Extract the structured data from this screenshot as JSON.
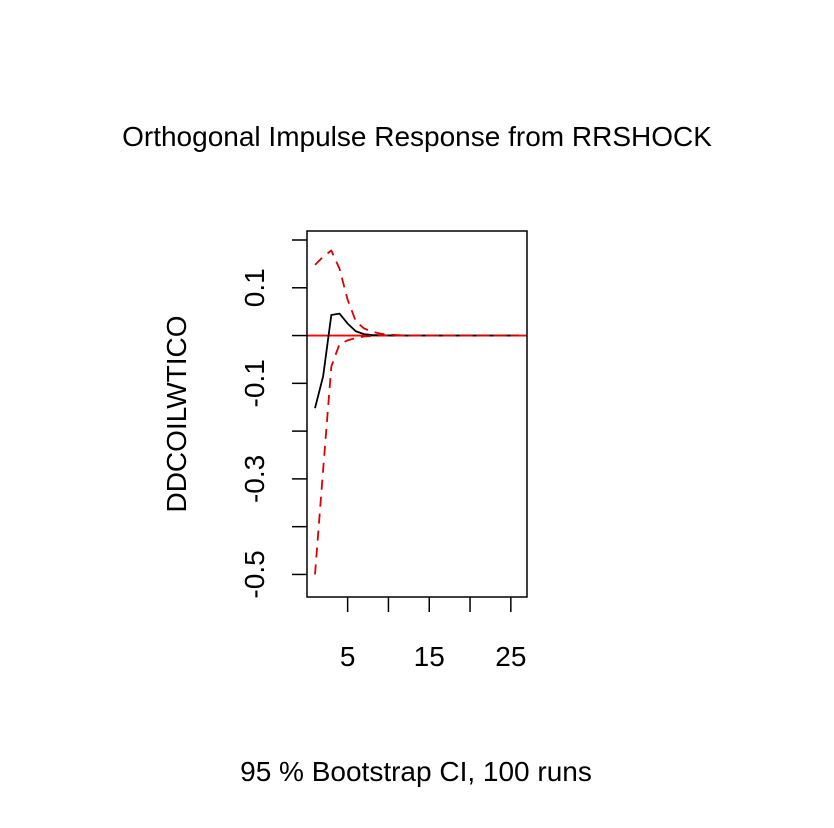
{
  "chart_data": {
    "type": "line",
    "title": "Orthogonal Impulse Response from RRSHOCK",
    "subtitle": "95 % Bootstrap CI,  100 runs",
    "ylabel": "DDCOILWTICO",
    "xlabel": "",
    "xlim": [
      1,
      26
    ],
    "ylim": [
      -0.52,
      0.2
    ],
    "x_ticks": [
      5,
      10,
      15,
      20,
      25
    ],
    "x_tick_labels": [
      "5",
      "15",
      "25"
    ],
    "y_ticks": [
      -0.5,
      -0.4,
      -0.3,
      -0.2,
      -0.1,
      0.0,
      0.1,
      0.2
    ],
    "y_tick_labels": [
      "-0.5",
      "-0.3",
      "-0.1",
      "0.1"
    ],
    "zero_line": 0,
    "grid": false,
    "colors": {
      "response": "#000000",
      "ci": "#dd0000",
      "zero": "#ff0000"
    },
    "series": [
      {
        "role": "response",
        "x": [
          1,
          2,
          3,
          4,
          5,
          6,
          7,
          8,
          9,
          10,
          11,
          12,
          13,
          14,
          15,
          16,
          17,
          18,
          19,
          20,
          21,
          22,
          23,
          24,
          25,
          26
        ],
        "values": [
          -0.152,
          -0.085,
          0.043,
          0.046,
          0.025,
          0.009,
          0.003,
          0.001,
          0.0005,
          0.0002,
          0,
          0,
          0,
          0,
          0,
          0,
          0,
          0,
          0,
          0,
          0,
          0,
          0,
          0,
          0,
          0
        ]
      },
      {
        "role": "upper",
        "x": [
          1,
          2,
          3,
          4,
          5,
          6,
          7,
          8,
          9,
          10,
          11,
          12,
          13,
          14,
          15,
          16,
          17,
          18,
          19,
          20,
          21,
          22,
          23,
          24,
          25,
          26
        ],
        "values": [
          0.148,
          0.165,
          0.178,
          0.14,
          0.075,
          0.03,
          0.015,
          0.008,
          0.004,
          0.002,
          0.001,
          0.0005,
          0,
          0,
          0,
          0,
          0,
          0,
          0,
          0,
          0,
          0,
          0,
          0,
          0,
          0
        ]
      },
      {
        "role": "lower",
        "x": [
          1,
          2,
          3,
          4,
          5,
          6,
          7,
          8,
          9,
          10,
          11,
          12,
          13,
          14,
          15,
          16,
          17,
          18,
          19,
          20,
          21,
          22,
          23,
          24,
          25,
          26
        ],
        "values": [
          -0.5,
          -0.28,
          -0.065,
          -0.018,
          -0.01,
          -0.005,
          -0.002,
          -0.001,
          0,
          0,
          0,
          0,
          0,
          0,
          0,
          0,
          0,
          0,
          0,
          0,
          0,
          0,
          0,
          0,
          0,
          0
        ]
      }
    ]
  }
}
